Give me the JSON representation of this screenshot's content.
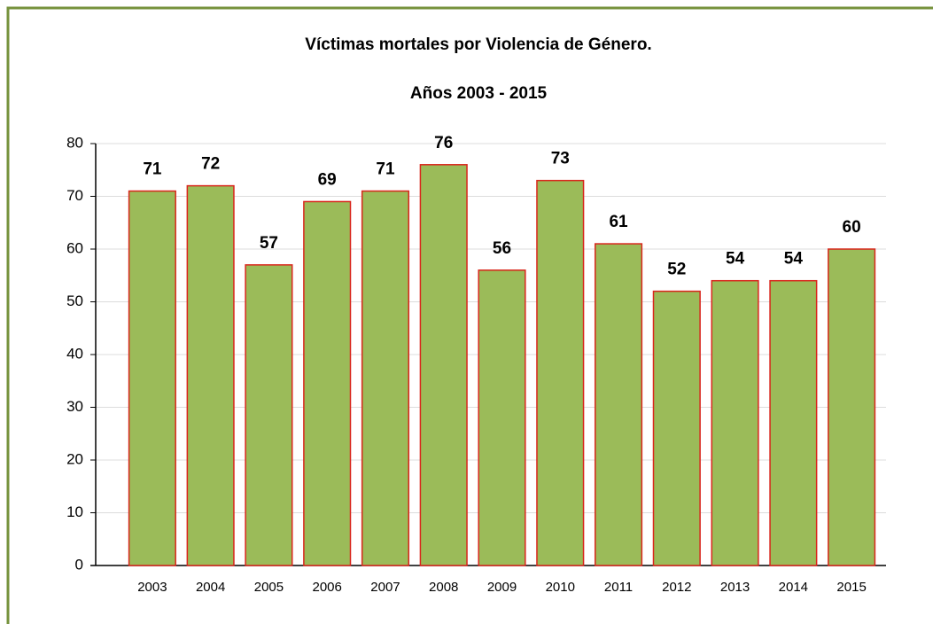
{
  "chart_data": {
    "type": "bar",
    "title": "Víctimas mortales por Violencia de Género.",
    "subtitle": "Años 2003 - 2015",
    "categories": [
      "2003",
      "2004",
      "2005",
      "2006",
      "2007",
      "2008",
      "2009",
      "2010",
      "2011",
      "2012",
      "2013",
      "2014",
      "2015"
    ],
    "values": [
      71,
      72,
      57,
      69,
      71,
      76,
      56,
      73,
      61,
      52,
      54,
      54,
      60
    ],
    "color": "#9bbb59",
    "edge_color": "#d9261c",
    "ylim": [
      0,
      80
    ],
    "yticks": [
      0,
      10,
      20,
      30,
      40,
      50,
      60,
      70,
      80
    ],
    "grid": true
  }
}
